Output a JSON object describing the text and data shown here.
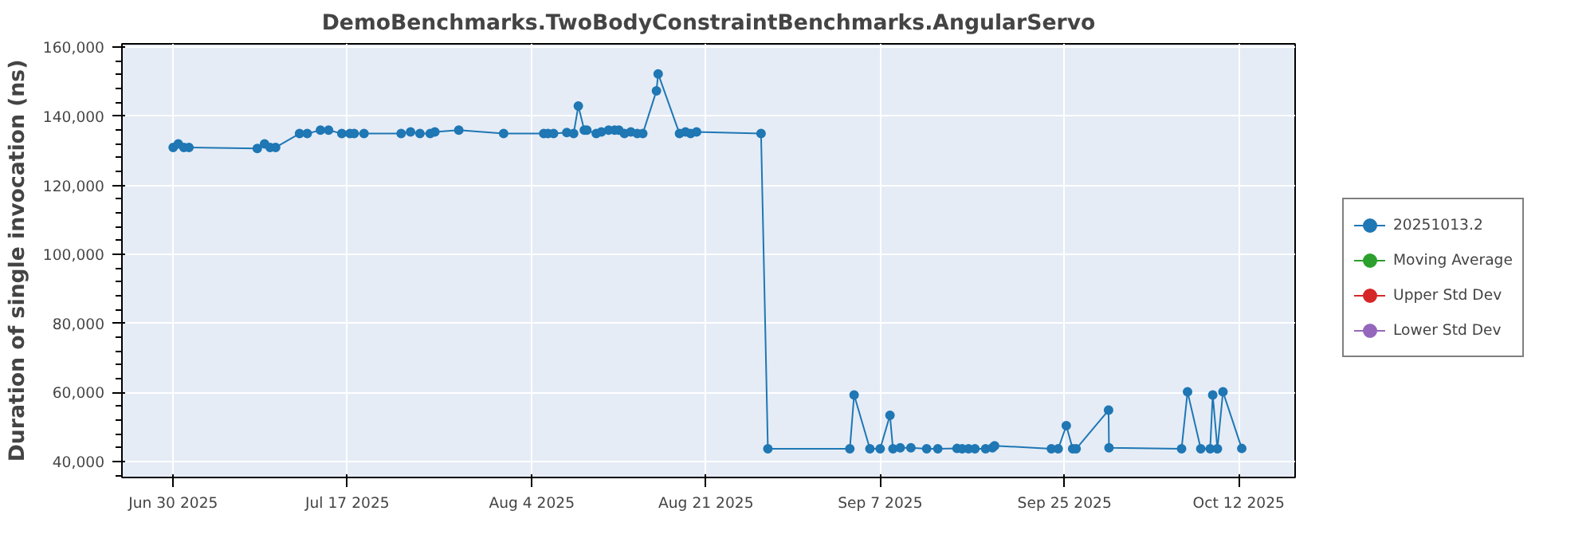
{
  "chart_data": {
    "type": "line",
    "title": "DemoBenchmarks.TwoBodyConstraintBenchmarks.AngularServo",
    "ylabel": "Duration of single invocation (ns)",
    "x": [
      "2025-06-30T00:00",
      "2025-06-30T12:00",
      "2025-07-01T01:00",
      "2025-07-01T13:00",
      "2025-07-08T05:00",
      "2025-07-08T22:00",
      "2025-07-09T11:00",
      "2025-07-10T00:00",
      "2025-07-12T08:00",
      "2025-07-13T02:00",
      "2025-07-14T09:00",
      "2025-07-15T04:00",
      "2025-07-16T11:00",
      "2025-07-17T06:00",
      "2025-07-17T16:00",
      "2025-07-18T15:00",
      "2025-07-22T06:00",
      "2025-07-23T04:00",
      "2025-07-24T02:00",
      "2025-07-25T02:00",
      "2025-07-25T13:00",
      "2025-07-27T21:00",
      "2025-08-01T06:00",
      "2025-08-05T04:00",
      "2025-08-05T14:00",
      "2025-08-06T03:00",
      "2025-08-07T10:00",
      "2025-08-08T02:00",
      "2025-08-08T13:00",
      "2025-08-09T03:00",
      "2025-08-09T09:00",
      "2025-08-10T07:00",
      "2025-08-10T19:00",
      "2025-08-11T12:00",
      "2025-08-12T02:00",
      "2025-08-12T12:00",
      "2025-08-13T01:00",
      "2025-08-13T16:00",
      "2025-08-14T07:00",
      "2025-08-14T20:00",
      "2025-08-16T04:00",
      "2025-08-16T08:00",
      "2025-08-18T10:00",
      "2025-08-19T00:00",
      "2025-08-19T12:00",
      "2025-08-20T02:00",
      "2025-08-26T09:00",
      "2025-08-27T01:00",
      "2025-09-04T01:00",
      "2025-09-04T11:00",
      "2025-09-06T00:00",
      "2025-09-07T00:00",
      "2025-09-07T23:00",
      "2025-09-08T06:00",
      "2025-09-08T23:00",
      "2025-09-10T00:00",
      "2025-09-11T13:00",
      "2025-09-12T15:00",
      "2025-09-14T12:00",
      "2025-09-15T00:00",
      "2025-09-15T15:00",
      "2025-09-16T06:00",
      "2025-09-17T07:00",
      "2025-09-17T23:00",
      "2025-09-18T04:00",
      "2025-09-23T17:00",
      "2025-09-24T09:00",
      "2025-09-25T04:00",
      "2025-09-25T19:00",
      "2025-09-26T03:00",
      "2025-09-29T07:00",
      "2025-09-29T08:00",
      "2025-10-06T10:00",
      "2025-10-07T00:00",
      "2025-10-08T07:00",
      "2025-10-09T05:00",
      "2025-10-09T11:00",
      "2025-10-09T22:00",
      "2025-10-10T11:00",
      "2025-10-12T07:00"
    ],
    "series": [
      {
        "name": "20251013.2",
        "color": "#1f77b4",
        "values": [
          131000,
          132000,
          131000,
          131000,
          130700,
          132000,
          131000,
          131000,
          135000,
          135000,
          136000,
          136000,
          135000,
          135000,
          135000,
          135000,
          135000,
          135500,
          135000,
          135000,
          135500,
          136000,
          135000,
          135000,
          135000,
          135000,
          135300,
          135000,
          143000,
          136000,
          136000,
          135000,
          135500,
          136000,
          136000,
          136000,
          135000,
          135500,
          135000,
          135000,
          147400,
          152300,
          135000,
          135500,
          135000,
          135500,
          135000,
          43700,
          43700,
          59300,
          43700,
          43700,
          53400,
          43700,
          44000,
          44000,
          43700,
          43700,
          43800,
          43700,
          43700,
          43700,
          43700,
          44000,
          44600,
          43700,
          43700,
          50400,
          43700,
          43700,
          54900,
          44000,
          43700,
          60200,
          43700,
          43700,
          59300,
          43700,
          60200,
          43800
        ]
      },
      {
        "name": "Moving Average",
        "color": "#2ca02c",
        "values": [
          null,
          null,
          null,
          null,
          null,
          null,
          null,
          null,
          null,
          null,
          null,
          null,
          null,
          null,
          null,
          null,
          null,
          null,
          null,
          null,
          null,
          null,
          null,
          null,
          null,
          null,
          null,
          null,
          null,
          null,
          null,
          null,
          null,
          null,
          null,
          null,
          null,
          null,
          null,
          null,
          null,
          null,
          null,
          null,
          null,
          null,
          null,
          null,
          null,
          null,
          null,
          null,
          null,
          null,
          null,
          null,
          null,
          null,
          null,
          null,
          null,
          null,
          null,
          null,
          null,
          null,
          null,
          null,
          null,
          null,
          null,
          null,
          null,
          null,
          null,
          null,
          null,
          null,
          null,
          null
        ]
      },
      {
        "name": "Upper Std Dev",
        "color": "#d62728",
        "values": [
          null,
          null,
          null,
          null,
          null,
          null,
          null,
          null,
          null,
          null,
          null,
          null,
          null,
          null,
          null,
          null,
          null,
          null,
          null,
          null,
          null,
          null,
          null,
          null,
          null,
          null,
          null,
          null,
          null,
          null,
          null,
          null,
          null,
          null,
          null,
          null,
          null,
          null,
          null,
          null,
          null,
          null,
          null,
          null,
          null,
          null,
          null,
          null,
          null,
          null,
          null,
          null,
          null,
          null,
          null,
          null,
          null,
          null,
          null,
          null,
          null,
          null,
          null,
          null,
          null,
          null,
          null,
          null,
          null,
          null,
          null,
          null,
          null,
          null,
          null,
          null,
          null,
          null,
          null,
          null
        ]
      },
      {
        "name": "Lower Std Dev",
        "color": "#9467bd",
        "values": [
          null,
          null,
          null,
          null,
          null,
          null,
          null,
          null,
          null,
          null,
          null,
          null,
          null,
          null,
          null,
          null,
          null,
          null,
          null,
          null,
          null,
          null,
          null,
          null,
          null,
          null,
          null,
          null,
          null,
          null,
          null,
          null,
          null,
          null,
          null,
          null,
          null,
          null,
          null,
          null,
          null,
          null,
          null,
          null,
          null,
          null,
          null,
          null,
          null,
          null,
          null,
          null,
          null,
          null,
          null,
          null,
          null,
          null,
          null,
          null,
          null,
          null,
          null,
          null,
          null,
          null,
          null,
          null,
          null,
          null,
          null,
          null,
          null,
          null,
          null,
          null,
          null,
          null,
          null,
          null
        ]
      }
    ],
    "xlim": [
      "2025-06-25T00:00",
      "2025-10-17T12:00"
    ],
    "xticks": [
      {
        "value": "2025-06-30",
        "label": "Jun 30 2025"
      },
      {
        "value": "2025-07-17",
        "label": "Jul 17 2025"
      },
      {
        "value": "2025-08-04",
        "label": "Aug 4 2025"
      },
      {
        "value": "2025-08-21",
        "label": "Aug 21 2025"
      },
      {
        "value": "2025-09-07",
        "label": "Sep 7 2025"
      },
      {
        "value": "2025-09-25",
        "label": "Sep 25 2025"
      },
      {
        "value": "2025-10-12",
        "label": "Oct 12 2025"
      }
    ],
    "ylim": [
      35400,
      161000
    ],
    "yticks": [
      {
        "value": 40000,
        "label": "40,000"
      },
      {
        "value": 60000,
        "label": "60,000"
      },
      {
        "value": 80000,
        "label": "80,000"
      },
      {
        "value": 100000,
        "label": "100,000"
      },
      {
        "value": 120000,
        "label": "120,000"
      },
      {
        "value": 140000,
        "label": "140,000"
      },
      {
        "value": 160000,
        "label": "160,000"
      }
    ],
    "grid": true,
    "legend": "right",
    "marker": "circle",
    "line_style": "solid"
  }
}
